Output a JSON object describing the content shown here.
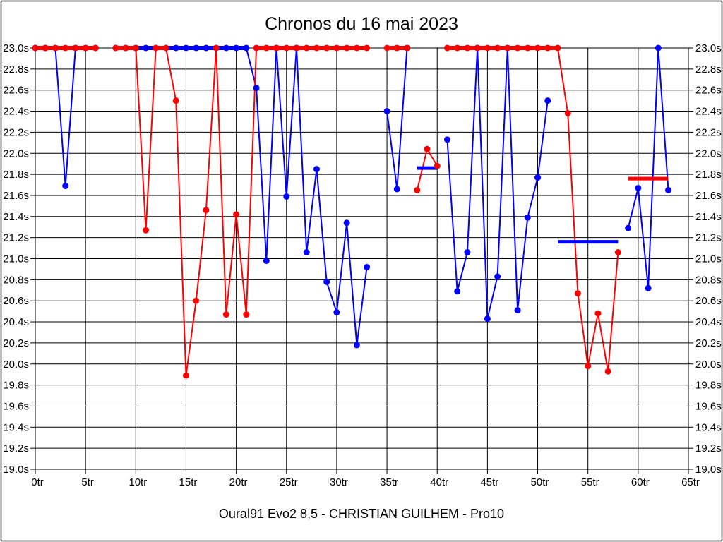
{
  "title": "Chronos du 16 mai 2023",
  "caption": "Oural91  Evo2  8,5 - CHRISTIAN GUILHEM - Pro10",
  "colors": {
    "series_blue": "#0000ff",
    "series_red": "#ff0000",
    "grid": "#000000",
    "background": "#ffffff"
  },
  "chart_data": {
    "type": "line",
    "title": "Chronos du 16 mai 2023",
    "x_unit": "tr",
    "y_unit": "s",
    "xlim": [
      0,
      65
    ],
    "ylim": [
      19.0,
      23.0
    ],
    "y_tick_step": 0.2,
    "cap_value": 23.0,
    "grid": "on",
    "x_tick_values": [
      0,
      5,
      10,
      15,
      20,
      25,
      30,
      35,
      40,
      45,
      50,
      55,
      60,
      65
    ],
    "x_tick_labels": [
      "0tr",
      "5tr",
      "10tr",
      "15tr",
      "20tr",
      "25tr",
      "30tr",
      "35tr",
      "40tr",
      "45tr",
      "50tr",
      "55tr",
      "60tr",
      "65tr"
    ],
    "y_tick_values": [
      23.0,
      22.8,
      22.6,
      22.4,
      22.2,
      22.0,
      21.8,
      21.6,
      21.4,
      21.2,
      21.0,
      20.8,
      20.6,
      20.4,
      20.2,
      20.0,
      19.8,
      19.6,
      19.4,
      19.2,
      19.0
    ],
    "y_tick_labels": [
      "23.0s",
      "22.8s",
      "22.6s",
      "22.4s",
      "22.2s",
      "22.0s",
      "21.8s",
      "21.6s",
      "21.4s",
      "21.2s",
      "21.0s",
      "20.8s",
      "20.6s",
      "20.4s",
      "20.2s",
      "20.0s",
      "19.8s",
      "19.6s",
      "19.4s",
      "19.2s",
      "19.0s"
    ],
    "series": [
      {
        "name": "blue",
        "color": "#0000ff",
        "x": [
          0,
          1,
          2,
          3,
          4,
          5,
          6,
          7,
          8,
          9,
          10,
          11,
          12,
          13,
          14,
          15,
          16,
          17,
          18,
          19,
          20,
          21,
          22,
          23,
          24,
          25,
          26,
          27,
          28,
          29,
          30,
          31,
          32,
          33,
          34,
          35,
          36,
          37,
          38,
          39,
          40,
          41,
          42,
          43,
          44,
          45,
          46,
          47,
          48,
          49,
          50,
          51,
          52,
          53,
          54,
          55,
          56,
          57,
          58,
          59,
          60,
          61,
          62,
          63
        ],
        "values": [
          23,
          23,
          23,
          21.69,
          23,
          23,
          23,
          null,
          23,
          23,
          23,
          23,
          23,
          23,
          23,
          23,
          23,
          23,
          23,
          23,
          23,
          23,
          22.62,
          20.98,
          23,
          21.59,
          23,
          21.06,
          21.85,
          20.78,
          20.49,
          21.34,
          20.18,
          20.92,
          null,
          22.4,
          21.66,
          23,
          null,
          null,
          null,
          22.13,
          20.69,
          21.06,
          23,
          20.43,
          20.83,
          23,
          20.51,
          21.39,
          21.77,
          22.5,
          null,
          null,
          null,
          null,
          null,
          null,
          null,
          21.29,
          21.67,
          20.72,
          23,
          21.65
        ],
        "breaks": []
      },
      {
        "name": "red",
        "color": "#ff0000",
        "x": [
          0,
          1,
          2,
          3,
          4,
          5,
          6,
          7,
          8,
          9,
          10,
          11,
          12,
          13,
          14,
          15,
          16,
          17,
          18,
          19,
          20,
          21,
          22,
          23,
          24,
          25,
          26,
          27,
          28,
          29,
          30,
          31,
          32,
          33,
          34,
          35,
          36,
          37,
          38,
          39,
          40,
          41,
          42,
          43,
          44,
          45,
          46,
          47,
          48,
          49,
          50,
          51,
          52,
          53,
          54,
          55,
          56,
          57,
          58,
          59,
          60,
          61,
          62,
          63
        ],
        "values": [
          23,
          23,
          23,
          23,
          23,
          23,
          23,
          null,
          23,
          23,
          23,
          21.27,
          23,
          23,
          22.5,
          19.89,
          20.6,
          21.46,
          23,
          20.47,
          21.42,
          20.47,
          23,
          23,
          23,
          23,
          23,
          23,
          23,
          23,
          23,
          23,
          23,
          23,
          null,
          23,
          23,
          23,
          21.65,
          22.04,
          21.88,
          23,
          23,
          23,
          23,
          23,
          23,
          23,
          23,
          23,
          23,
          23,
          23,
          22.38,
          20.67,
          19.98,
          20.48,
          19.93,
          21.06,
          null,
          null,
          null,
          null,
          null
        ],
        "breaks": [
          [
            37,
            38
          ],
          [
            40,
            41
          ]
        ]
      }
    ],
    "average_bars": [
      {
        "series": "blue",
        "color": "#0000ff",
        "from_lap": 38,
        "to_lap": 40,
        "value": 21.86
      },
      {
        "series": "blue",
        "color": "#0000ff",
        "from_lap": 52,
        "to_lap": 58,
        "value": 21.16
      },
      {
        "series": "red",
        "color": "#ff0000",
        "from_lap": 59,
        "to_lap": 63,
        "value": 21.76
      }
    ]
  }
}
